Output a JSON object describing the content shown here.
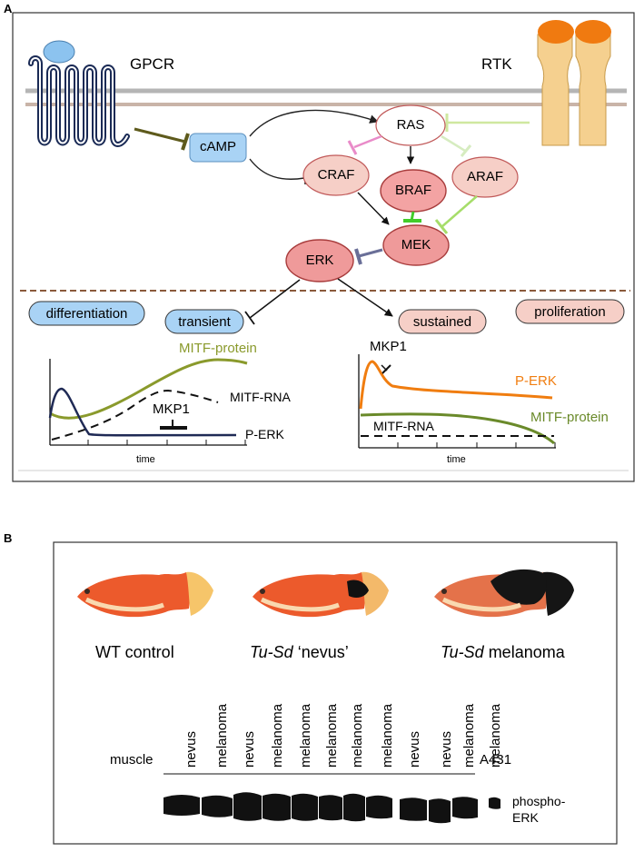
{
  "panel_a": {
    "label": "A",
    "receptors": {
      "gpcr": "GPCR",
      "rtk": "RTK"
    },
    "nodes": {
      "camp": "cAMP",
      "ras": "RAS",
      "craf": "CRAF",
      "braf": "BRAF",
      "araf": "ARAF",
      "mek": "MEK",
      "erk": "ERK"
    },
    "outcomes": {
      "differentiation": "differentiation",
      "transient": "transient",
      "sustained": "sustained",
      "proliferation": "proliferation"
    },
    "left_plot": {
      "mitf_protein": "MITF-protein",
      "mitf_rna": "MITF-RNA",
      "mkp1": "MKP1",
      "perk": "P-ERK",
      "xlabel": "time"
    },
    "right_plot": {
      "mkp1": "MKP1",
      "perk": "P-ERK",
      "mitf_rna": "MITF-RNA",
      "mitf_protein": "MITF-protein",
      "xlabel": "time"
    },
    "colors": {
      "camp": "#a9d3f5",
      "ras": "#ffffff",
      "raf": "#f6cfc7",
      "braf": "#f3a3a3",
      "mek_erk": "#ef9a9a",
      "mitf_protein": "#8a9a2c",
      "perk_sustained": "#f07d10",
      "perk_transient": "#1f2a55"
    }
  },
  "panel_b": {
    "label": "B",
    "fish_labels": {
      "wt": "WT control",
      "nevus_italic": "Tu-Sd",
      "nevus_rest": " ‘nevus’",
      "melanoma_italic": "Tu-Sd",
      "melanoma_rest": " melanoma"
    },
    "lanes": [
      "nevus",
      "melanoma",
      "nevus",
      "melanoma",
      "melanoma",
      "melanoma",
      "melanoma",
      "melanoma",
      "nevus",
      "nevus",
      "melanoma",
      "melanoma"
    ],
    "muscle": "muscle",
    "a431": "A431",
    "band_label_1": "phospho-",
    "band_label_2": "ERK"
  }
}
